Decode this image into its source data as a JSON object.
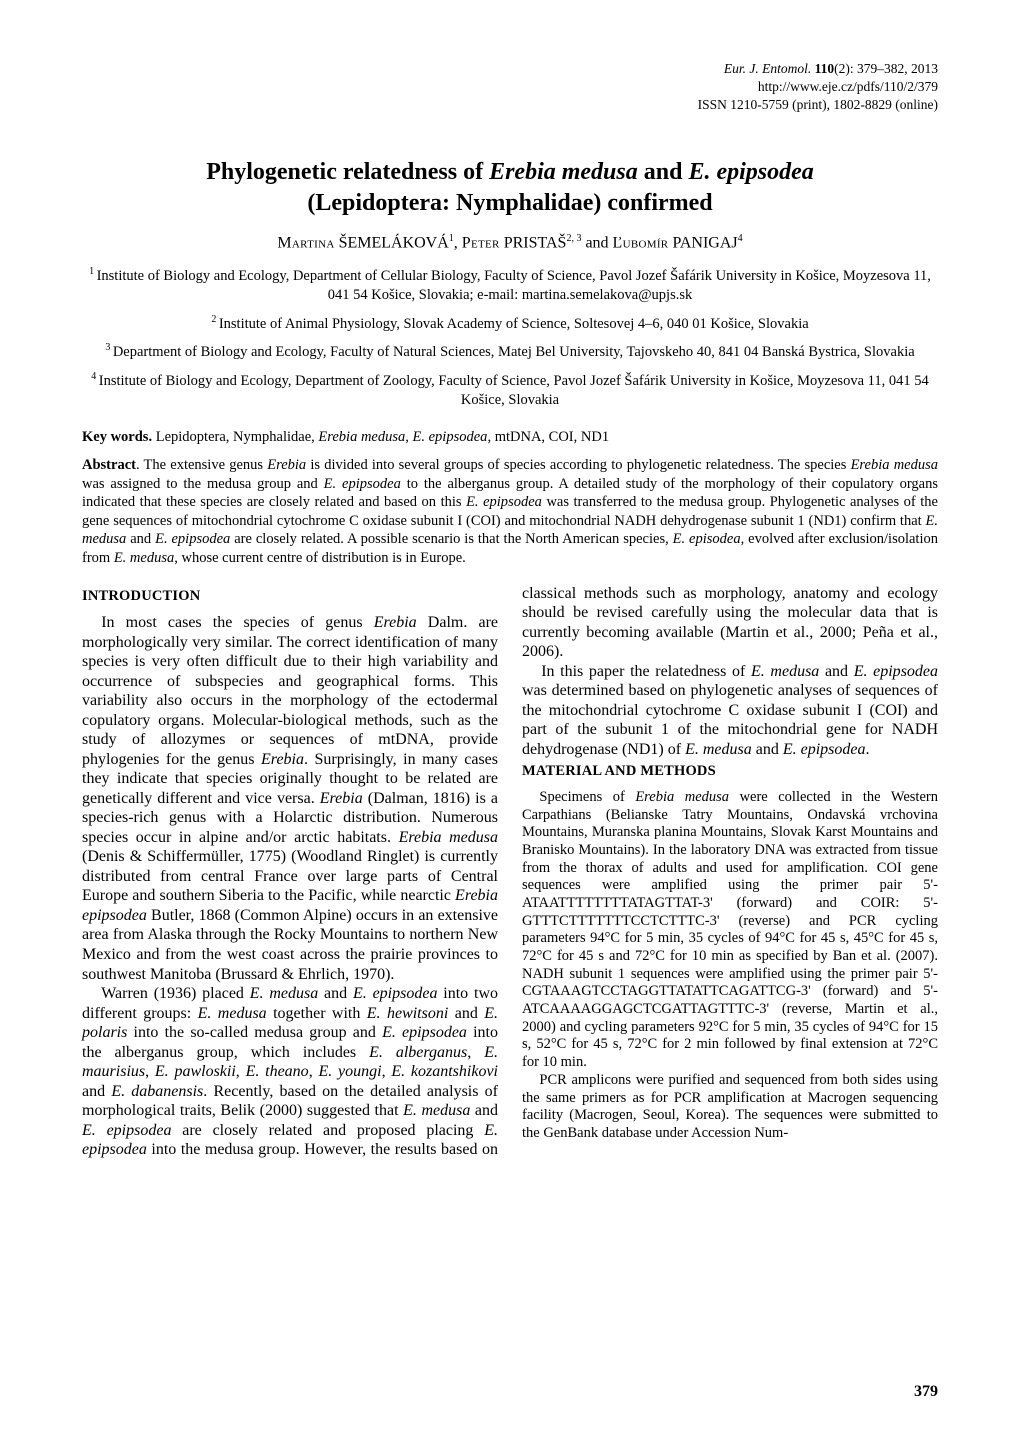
{
  "journal": {
    "line1_prefix": "Eur. J. Entomol. ",
    "vol": "110",
    "issue_pages": "(2): 379–382, 2013",
    "url": "http://www.eje.cz/pdfs/110/2/379",
    "issn": "ISSN 1210-5759 (print), 1802-8829 (online)"
  },
  "title": {
    "l1a": "Phylogenetic relatedness of ",
    "l1b": "Erebia medusa",
    "l1c": " and ",
    "l1d": "E. epipsodea",
    "l2": "(Lepidoptera: Nymphalidae) confirmed"
  },
  "authors": {
    "a1_sc": "Martina",
    "a1_ln": " ŠEMELÁKOVÁ",
    "a1_sup": "1",
    "sep1": ", ",
    "a2_sc": "Peter",
    "a2_ln": " PRISTAŠ",
    "a2_sup": "2, 3",
    "sep2": " and ",
    "a3_sc": "Ľubomír",
    "a3_ln": " PANIGAJ",
    "a3_sup": "4"
  },
  "affil": {
    "a1": "Institute of Biology and Ecology, Department of Cellular Biology, Faculty of Science, Pavol Jozef Šafárik University in Košice, Moyzesova 11, 041 54 Košice, Slovakia; e-mail: martina.semelakova@upjs.sk",
    "a2": "Institute of Animal Physiology, Slovak Academy of Science, Soltesovej 4–6, 040 01 Košice, Slovakia",
    "a3": "Department of Biology and Ecology, Faculty of Natural Sciences, Matej Bel University, Tajovskeho 40, 841 04 Banská Bystrica, Slovakia",
    "a4": "Institute of Biology and Ecology, Department of Zoology, Faculty of Science, Pavol Jozef Šafárik University in Košice, Moyzesova 11, 041 54 Košice, Slovakia"
  },
  "keywords": {
    "label": "Key words.",
    "text": " Lepidoptera, Nymphalidae, Erebia medusa, E. epipsodea, mtDNA, COI, ND1"
  },
  "abstract": {
    "label": "Abstract",
    "text": ". The extensive genus Erebia is divided into several groups of species according to phylogenetic relatedness. The species Erebia medusa was assigned to the medusa group and E. epipsodea to the alberganus group. A detailed study of the morphology of their copulatory organs indicated that these species are closely related and based on this E. epipsodea was transferred to the medusa group. Phylogenetic analyses of the gene sequences of mitochondrial cytochrome C oxidase subunit I (COI) and mitochondrial NADH dehydrogenase subunit 1 (ND1) confirm that E. medusa and E. epipsodea are closely related. A possible scenario is that the North American species, E. episodea, evolved after exclusion/isolation from E. medusa, whose current centre of distribution is in Europe."
  },
  "sections": {
    "intro_h": "INTRODUCTION",
    "intro_p1": "In most cases the species of genus Erebia Dalm. are morphologically very similar. The correct identification of many species is very often difficult due to their high variability and occurrence of subspecies and geographical forms. This variability also occurs in the morphology of the ectodermal copulatory organs. Molecular-biological methods, such as the study of allozymes or sequences of mtDNA, provide phylogenies for the genus Erebia. Surprisingly, in many cases they indicate that species originally thought to be related are genetically different and vice versa. Erebia (Dalman, 1816) is a species-rich genus with a Holarctic distribution. Numerous species occur in alpine and/or arctic habitats. Erebia medusa (Denis & Schiffermüller, 1775) (Woodland Ringlet) is currently distributed from central France over large parts of Central Europe and southern Siberia to the Pacific, while nearctic Erebia epipsodea Butler, 1868 (Common Alpine) occurs in an extensive area from Alaska through the Rocky Mountains to northern New Mexico and from the west coast across the prairie provinces to southwest Manitoba (Brussard & Ehrlich, 1970).",
    "intro_p2": "Warren (1936) placed E. medusa and E. epipsodea into two different groups: E. medusa together with E. hewitsoni and E. polaris into the so-called medusa group and E. epipsodea into the alberganus group, which includes E. alberganus, E. maurisius, E. pawloskii, E. theano, E. youngi, E. kozantshikovi and E. dabanensis. Recently, based on the detailed analysis of morphological traits, Belik (2000) suggested that E. medusa and E. epipsodea are closely related and proposed placing E. epipsodea into the medusa group. However, the results based on classical methods such as morphology, anatomy and ecology should be revised carefully using the molecular data that is currently becoming available (Martin et al., 2000; Peña et al., 2006).",
    "intro_p3": "In this paper the relatedness of E. medusa and E. epipsodea was determined based on phylogenetic analyses of sequences of the mitochondrial cytochrome C oxidase subunit I (COI) and part of the subunit 1 of the mitochondrial gene for NADH dehydrogenase (ND1) of E. medusa and E. epipsodea.",
    "mm_h": "MATERIAL AND METHODS",
    "mm_p1": "Specimens of Erebia medusa were collected in the Western Carpathians (Belianske Tatry Mountains, Ondavská vrchovina Mountains, Muranska planina Mountains, Slovak Karst Mountains and Branisko Mountains). In the laboratory DNA was extracted from tissue from the thorax of adults and used for amplification. COI gene sequences were amplified using the primer pair 5'-ATAATTTTTTTTATAGTTAT-3' (forward) and COIR: 5'-GTTTCTTTTTTTCCTCTTTC-3' (reverse) and PCR cycling parameters 94°C for 5 min, 35 cycles of 94°C for 45 s, 45°C for 45 s, 72°C for 45 s and 72°C for 10 min as specified by Ban et al. (2007). NADH subunit 1 sequences were amplified using the primer pair 5'-CGTAAAGTCCTAGGTTATATTCAGATTCG-3' (forward) and 5'-ATCAAAAGGAGCTCGATTAGTTTC-3' (reverse, Martin et al., 2000) and cycling parameters 92°C for 5 min, 35 cycles of 94°C for 15 s, 52°C for 45 s, 72°C for 2 min followed by final extension at 72°C for 10 min.",
    "mm_p2": "PCR amplicons were purified and sequenced from both sides using the same primers as for PCR amplification at Macrogen sequencing facility (Macrogen, Seoul, Korea). The sequences were submitted to the GenBank database under Accession Num-"
  },
  "page_number": "379",
  "italic_phrases": [
    "Erebia medusa",
    "E. epipsodea",
    "Erebia",
    "E. medusa",
    "E. episodea",
    "E. epipsodea,",
    "Erebia epipsodea",
    "E. hewitsoni",
    "E. polaris",
    "E. alberganus",
    "E. maurisius",
    "E. pawloskii",
    "E. theano",
    "E. youngi",
    "E. kozantshikovi",
    "E. dabanensis",
    "E. epip-",
    "sodea",
    "E. hewit-",
    "soni",
    "Eur. J. Entomol."
  ]
}
